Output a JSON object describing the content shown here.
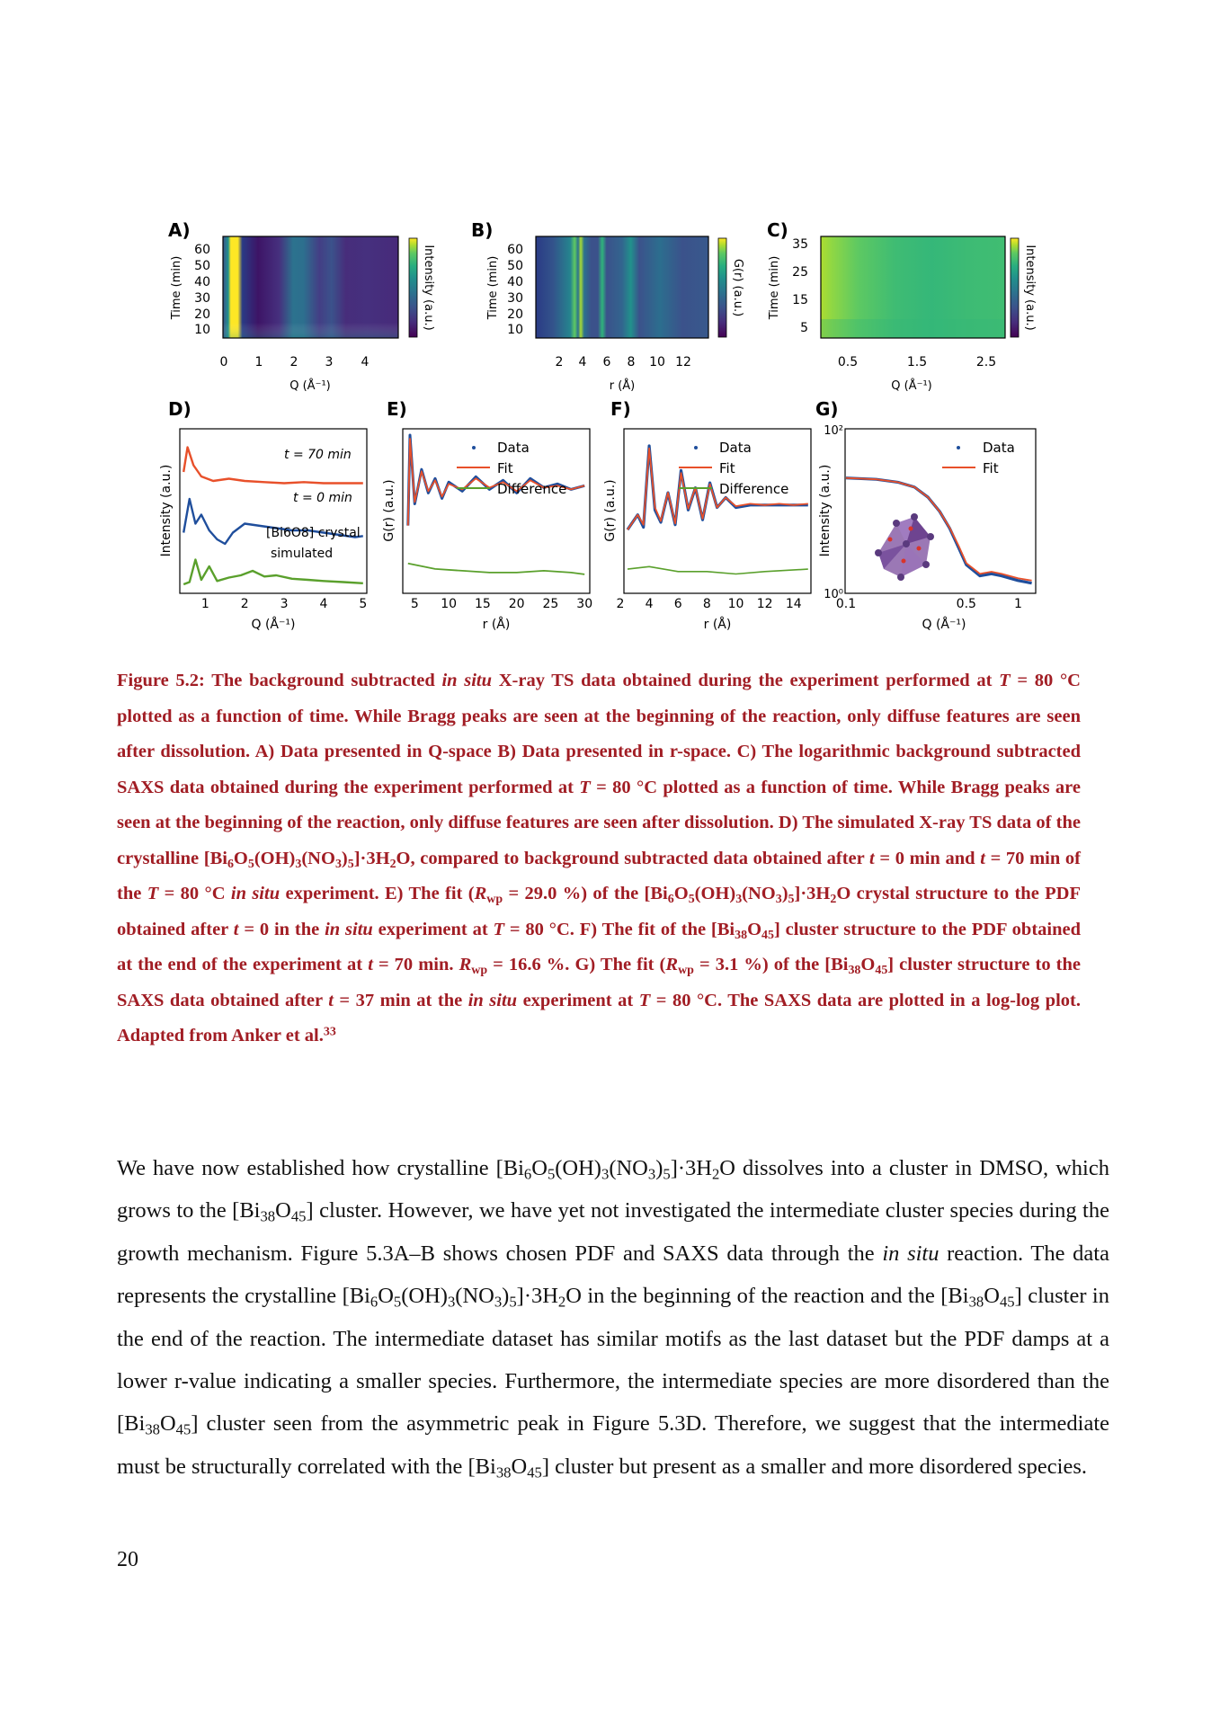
{
  "figure": {
    "panels": [
      {
        "label": "A)",
        "ylabel": "Time (min)",
        "xlabel": "Q (Å⁻¹)",
        "cbar": "Intensity (a.u.)",
        "xticks": [
          "0",
          "1",
          "2",
          "3",
          "4"
        ],
        "yticks": [
          "60",
          "50",
          "40",
          "30",
          "20",
          "10"
        ]
      },
      {
        "label": "B)",
        "ylabel": "Time (min)",
        "xlabel": "r (Å)",
        "cbar": "G(r) (a.u.)",
        "xticks": [
          "2",
          "4",
          "6",
          "8",
          "10",
          "12"
        ],
        "yticks": [
          "60",
          "50",
          "40",
          "30",
          "20",
          "10"
        ]
      },
      {
        "label": "C)",
        "ylabel": "Time (min)",
        "xlabel": "Q (Å⁻¹)",
        "cbar": "Intensity (a.u.)",
        "xticks": [
          "0.5",
          "1.5",
          "2.5"
        ],
        "yticks": [
          "35",
          "25",
          "15",
          "5"
        ]
      },
      {
        "label": "D)",
        "ylabel": "Intensity (a.u.)",
        "xlabel": "Q (Å⁻¹)",
        "xticks": [
          "1",
          "2",
          "3",
          "4",
          "5"
        ],
        "annotations": [
          "t = 70 min",
          "t = 0 min",
          "[Bi6O8] crystal",
          "simulated"
        ]
      },
      {
        "label": "E)",
        "ylabel": "G(r) (a.u.)",
        "xlabel": "r (Å)",
        "xticks": [
          "5",
          "10",
          "15",
          "20",
          "25",
          "30"
        ],
        "legend": [
          "Data",
          "Fit",
          "Difference"
        ]
      },
      {
        "label": "F)",
        "ylabel": "G(r) (a.u.)",
        "xlabel": "r (Å)",
        "xticks": [
          "2",
          "4",
          "6",
          "8",
          "10",
          "12",
          "14"
        ],
        "legend": [
          "Data",
          "Fit",
          "Difference"
        ]
      },
      {
        "label": "G)",
        "ylabel": "Intensity (a.u.)",
        "xlabel": "Q (Å⁻¹)",
        "xticks": [
          "0.1",
          "0.5",
          "1"
        ],
        "yticks": [
          "10²",
          "10⁰"
        ],
        "legend": [
          "Data",
          "Fit"
        ]
      }
    ]
  },
  "colors": {
    "data": "#1f4e9c",
    "fit": "#e8502a",
    "diff": "#5aa02c",
    "caption": "#a11d24",
    "viridis": [
      "#440154",
      "#472d7b",
      "#3b528b",
      "#2c728e",
      "#21918c",
      "#28ae80",
      "#5ec962",
      "#addc30",
      "#fde725"
    ]
  },
  "chart_data": [
    {
      "type": "heatmap",
      "panel": "A",
      "x_label": "Q (Å⁻¹)",
      "y_label": "Time (min)",
      "xlim": [
        0,
        4.8
      ],
      "ylim": [
        5,
        65
      ],
      "features": [
        {
          "Q": 0.25,
          "note": "bright band"
        },
        {
          "Q": 1.85,
          "note": "diffuse band"
        },
        {
          "Q": 2.7,
          "note": "weak band"
        }
      ]
    },
    {
      "type": "heatmap",
      "panel": "B",
      "x_label": "r (Å)",
      "y_label": "Time (min)",
      "xlim": [
        1,
        14
      ],
      "ylim": [
        5,
        65
      ],
      "features": [
        {
          "r": 3.8
        },
        {
          "r": 4.4
        },
        {
          "r": 6.2
        },
        {
          "r": 8.4
        }
      ]
    },
    {
      "type": "heatmap",
      "panel": "C",
      "x_label": "Q (Å⁻¹)",
      "y_label": "Time (min)",
      "log": true,
      "xlim": [
        0.05,
        3.0
      ],
      "ylim": [
        2,
        38
      ]
    },
    {
      "type": "line",
      "panel": "D",
      "xlabel": "Q (Å⁻¹)",
      "ylabel": "Intensity (a.u.)",
      "xlim": [
        0.4,
        5
      ],
      "series": [
        {
          "name": "t = 70 min",
          "x": [
            0.45,
            0.55,
            0.7,
            0.9,
            1.2,
            1.6,
            2.0,
            2.5,
            3.0,
            3.5,
            4.0,
            4.5,
            5.0
          ],
          "y": [
            5.2,
            6.3,
            5.5,
            5.0,
            4.8,
            4.9,
            4.8,
            4.75,
            4.7,
            4.75,
            4.7,
            4.7,
            4.7
          ]
        },
        {
          "name": "t = 0 min",
          "x": [
            0.45,
            0.6,
            0.75,
            0.9,
            1.1,
            1.3,
            1.5,
            1.7,
            2.0,
            2.4,
            2.8,
            3.2,
            3.6,
            4.0,
            4.4,
            4.8,
            5.0
          ],
          "y": [
            2.5,
            4.0,
            2.9,
            3.3,
            2.6,
            2.2,
            2.0,
            2.5,
            2.9,
            2.8,
            2.7,
            2.6,
            2.6,
            2.5,
            2.4,
            2.3,
            2.35
          ]
        },
        {
          "name": "[Bi6O8] crystal simulated",
          "x": [
            0.45,
            0.6,
            0.75,
            0.9,
            1.1,
            1.3,
            1.6,
            1.9,
            2.2,
            2.5,
            2.8,
            3.2,
            3.6,
            4.0,
            4.5,
            5.0
          ],
          "y": [
            0.2,
            0.3,
            1.3,
            0.4,
            1.0,
            0.35,
            0.5,
            0.6,
            0.8,
            0.55,
            0.6,
            0.45,
            0.4,
            0.35,
            0.3,
            0.25
          ]
        }
      ]
    },
    {
      "type": "line",
      "panel": "E",
      "xlabel": "r (Å)",
      "ylabel": "G(r) (a.u.)",
      "xlim": [
        3.5,
        30
      ],
      "series": [
        {
          "name": "Data",
          "x": [
            4,
            4.3,
            5,
            6,
            7,
            8,
            9,
            10,
            12,
            14,
            16,
            18,
            20,
            22,
            24,
            26,
            28,
            30
          ],
          "y": [
            0,
            5,
            1.2,
            3.1,
            1.8,
            2.6,
            1.5,
            2.4,
            1.9,
            2.7,
            2.0,
            2.5,
            1.8,
            2.6,
            2.1,
            2.3,
            2.0,
            2.2
          ]
        },
        {
          "name": "Fit",
          "x": [
            4,
            4.3,
            5,
            6,
            7,
            8,
            9,
            10,
            12,
            14,
            16,
            18,
            20,
            22,
            24,
            26,
            28,
            30
          ],
          "y": [
            0,
            4.8,
            1.3,
            3.0,
            1.9,
            2.5,
            1.6,
            2.3,
            2.0,
            2.6,
            2.1,
            2.4,
            1.9,
            2.5,
            2.1,
            2.2,
            2.0,
            2.2
          ]
        },
        {
          "name": "Difference",
          "x": [
            4,
            8,
            12,
            16,
            20,
            24,
            28,
            30
          ],
          "y": [
            -2.1,
            -2.4,
            -2.5,
            -2.6,
            -2.6,
            -2.5,
            -2.6,
            -2.7
          ]
        }
      ]
    },
    {
      "type": "line",
      "panel": "F",
      "xlabel": "r (Å)",
      "ylabel": "G(r) (a.u.)",
      "xlim": [
        2,
        15
      ],
      "series": [
        {
          "name": "Data",
          "x": [
            2.5,
            3.2,
            3.6,
            4.0,
            4.4,
            4.8,
            5.3,
            5.8,
            6.2,
            6.7,
            7.2,
            7.7,
            8.2,
            8.7,
            9.3,
            10.0,
            11,
            12,
            13,
            14,
            15
          ],
          "y": [
            0,
            0.6,
            0.1,
            3.4,
            0.8,
            0.3,
            1.5,
            0.2,
            2.4,
            0.8,
            1.7,
            0.4,
            1.9,
            0.9,
            1.3,
            0.9,
            1.0,
            1.0,
            1.0,
            1.0,
            1.0
          ]
        },
        {
          "name": "Fit",
          "x": [
            2.5,
            3.2,
            3.6,
            4.0,
            4.4,
            4.8,
            5.3,
            5.8,
            6.2,
            6.7,
            7.2,
            7.7,
            8.2,
            8.7,
            9.3,
            10.0,
            11,
            12,
            13,
            14,
            15
          ],
          "y": [
            0,
            0.6,
            0.2,
            3.3,
            0.9,
            0.35,
            1.5,
            0.25,
            2.3,
            0.85,
            1.7,
            0.45,
            1.85,
            0.9,
            1.3,
            0.95,
            1.05,
            1.0,
            1.05,
            1.0,
            1.05
          ]
        },
        {
          "name": "Difference",
          "x": [
            2.5,
            4,
            6,
            8,
            10,
            12,
            15
          ],
          "y": [
            -1.6,
            -1.5,
            -1.7,
            -1.7,
            -1.8,
            -1.7,
            -1.6
          ]
        }
      ]
    },
    {
      "type": "line",
      "panel": "G",
      "xlabel": "Q (Å⁻¹)",
      "ylabel": "Intensity (a.u.)",
      "log_x": true,
      "log_y": true,
      "xlim": [
        0.1,
        1.2
      ],
      "ylim": [
        1,
        100
      ],
      "series": [
        {
          "name": "Data",
          "x": [
            0.1,
            0.15,
            0.2,
            0.25,
            0.3,
            0.35,
            0.4,
            0.45,
            0.5,
            0.6,
            0.7,
            0.8,
            1.0,
            1.2
          ],
          "y": [
            26,
            25,
            23,
            20,
            15,
            10,
            6.2,
            3.6,
            2.2,
            1.6,
            1.7,
            1.6,
            1.4,
            1.3
          ]
        },
        {
          "name": "Fit",
          "x": [
            0.1,
            0.15,
            0.2,
            0.25,
            0.3,
            0.35,
            0.4,
            0.45,
            0.5,
            0.6,
            0.7,
            0.8,
            1.0,
            1.2
          ],
          "y": [
            26,
            25,
            23,
            20,
            15,
            10,
            6.3,
            3.8,
            2.3,
            1.7,
            1.8,
            1.7,
            1.5,
            1.4
          ]
        }
      ]
    }
  ],
  "caption": {
    "text_html": "Figure 5.2: The background subtracted <i>in situ</i> X-ray TS data obtained during the experiment performed at <i>T</i> = 80 °C plotted as a function of time. While Bragg peaks are seen at the beginning of the reaction, only diffuse features are seen after dissolution. A) Data presented in Q-space B) Data presented in r-space. C) The logarithmic background subtracted SAXS data obtained during the experiment performed at <i>T</i> = 80 °C plotted as a function of time. While Bragg peaks are seen at the beginning of the reaction, only diffuse features are seen after dissolution. D) The simulated X-ray TS data of the crystalline [Bi<sub>6</sub>O<sub>5</sub>(OH)<sub>3</sub>(NO<sub>3</sub>)<sub>5</sub>]·3H<sub>2</sub>O, compared to background subtracted data obtained after <i>t</i> = 0 min and <i>t</i> = 70 min of the <i>T</i> = 80 °C <i>in situ</i> experiment. E) The fit (<i>R</i><sub>wp</sub> = 29.0 %) of the [Bi<sub>6</sub>O<sub>5</sub>(OH)<sub>3</sub>(NO<sub>3</sub>)<sub>5</sub>]·3H<sub>2</sub>O crystal structure to the PDF obtained after <i>t</i> = 0 in the <i>in situ</i> experiment at <i>T</i> = 80 °C. F) The fit of the [Bi<sub>38</sub>O<sub>45</sub>] cluster structure to the PDF obtained at the end of the experiment at <i>t</i> = 70 min. <i>R</i><sub>wp</sub> = 16.6 %. G) The fit (<i>R</i><sub>wp</sub> = 3.1 %) of the [Bi<sub>38</sub>O<sub>45</sub>] cluster structure to the SAXS data obtained after <i>t</i> = 37 min at the <i>in situ</i> experiment at <i>T</i> = 80 °C. The SAXS data are plotted in a log-log plot. Adapted from Anker et al.<sup>33</sup>"
  },
  "body": {
    "text_html": "We have now established how crystalline [Bi<sub>6</sub>O<sub>5</sub>(OH)<sub>3</sub>(NO<sub>3</sub>)<sub>5</sub>]·3H<sub>2</sub>O dissolves into a cluster in DMSO, which grows to the [Bi<sub>38</sub>O<sub>45</sub>] cluster. However, we have yet not investigated the intermediate cluster species during the growth mechanism. Figure 5.3A–B shows chosen PDF and SAXS data through the <i>in situ</i> reaction. The data represents the crystalline [Bi<sub>6</sub>O<sub>5</sub>(OH)<sub>3</sub>(NO<sub>3</sub>)<sub>5</sub>]·3H<sub>2</sub>O in the beginning of the reaction and the [Bi<sub>38</sub>O<sub>45</sub>] cluster in the end of the reaction. The intermediate dataset has similar motifs as the last dataset but the PDF damps at a lower r-value indicating a smaller species. Furthermore, the intermediate species are more disordered than the [Bi<sub>38</sub>O<sub>45</sub>] cluster seen from the asymmetric peak in Figure 5.3D. Therefore, we suggest that the intermediate must be structurally correlated with the [Bi<sub>38</sub>O<sub>45</sub>] cluster but present as a smaller and more disordered species."
  },
  "page_number": "20"
}
